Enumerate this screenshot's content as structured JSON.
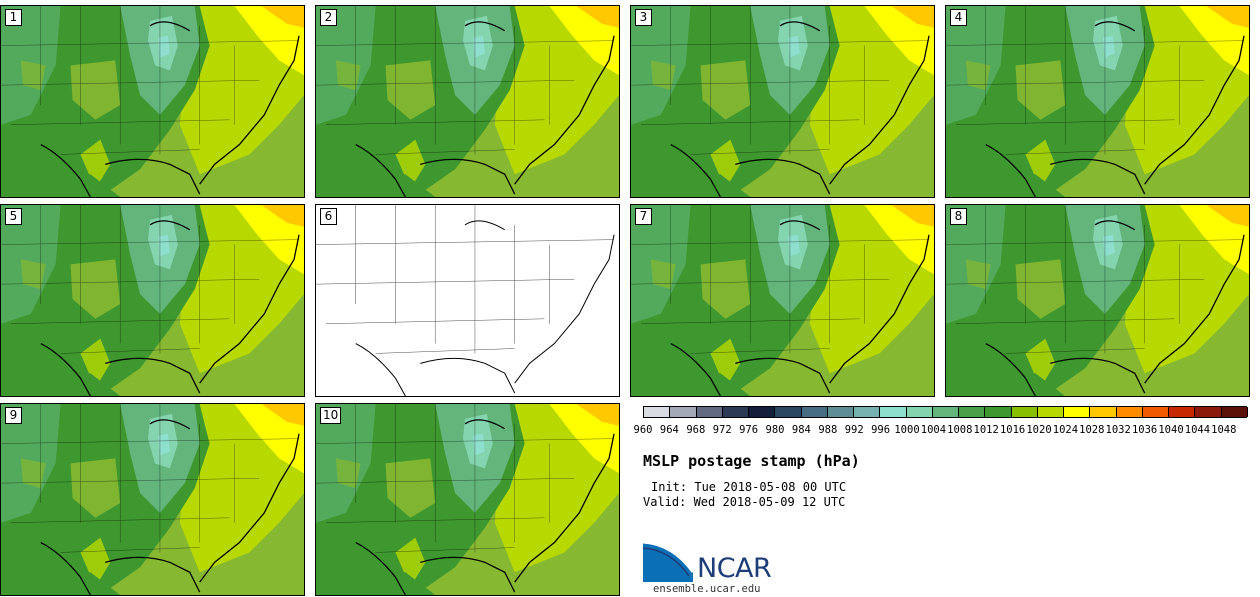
{
  "panels": [
    {
      "label": "1",
      "blank": false
    },
    {
      "label": "2",
      "blank": false
    },
    {
      "label": "3",
      "blank": false
    },
    {
      "label": "4",
      "blank": false
    },
    {
      "label": "5",
      "blank": false
    },
    {
      "label": "6",
      "blank": true
    },
    {
      "label": "7",
      "blank": false
    },
    {
      "label": "8",
      "blank": false
    },
    {
      "label": "9",
      "blank": false
    },
    {
      "label": "10",
      "blank": false
    }
  ],
  "colorbar": {
    "ticks": [
      "960",
      "964",
      "968",
      "972",
      "976",
      "980",
      "984",
      "988",
      "992",
      "996",
      "1000",
      "1004",
      "1008",
      "1012",
      "1016",
      "1020",
      "1024",
      "1028",
      "1032",
      "1036",
      "1040",
      "1044",
      "1048"
    ],
    "colors": [
      "#d8dce3",
      "#a3a8b6",
      "#626a82",
      "#2d3a56",
      "#14203b",
      "#2b4761",
      "#466d82",
      "#5f8d96",
      "#76b1b0",
      "#8edfcd",
      "#85d4b0",
      "#63b57c",
      "#4b9f49",
      "#3f982f",
      "#88bf00",
      "#b8d900",
      "#ffff00",
      "#ffc800",
      "#ff8c00",
      "#f05a00",
      "#c82800",
      "#8c1a0a",
      "#5a1208"
    ]
  },
  "title": "MSLP postage stamp (hPa)",
  "init": "Init: Tue 2018-05-08 00 UTC",
  "valid": "Valid: Wed 2018-05-09 12 UTC",
  "logo": {
    "text": "NCAR",
    "colors": {
      "blue": "#0a6fb5",
      "navy": "#1d3d78"
    }
  },
  "site": "ensemble.ucar.edu",
  "map_colors": {
    "base": "#86b832",
    "dark": "#3f982f",
    "mid": "#63b57c",
    "teal": "#8edfcd",
    "light": "#b8d900",
    "yellow": "#ffff00",
    "orange": "#ffc800"
  }
}
